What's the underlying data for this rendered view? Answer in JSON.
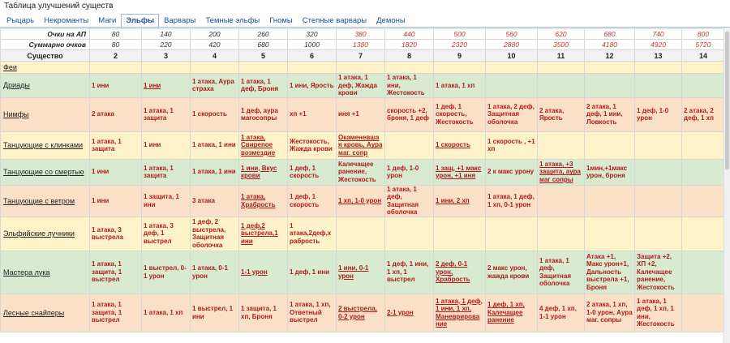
{
  "title": "Таблица улучшений существ",
  "tabs": [
    "Рыцарь",
    "Некроманты",
    "Маги",
    "Эльфы",
    "Варвары",
    "Темные эльфы",
    "Гномы",
    "Степные варвары",
    "Демоны"
  ],
  "active_tab": 3,
  "ap_label": "Очки на АП",
  "total_label": "Суммарно очков",
  "creature_label": "Существо",
  "ap": [
    "80",
    "140",
    "200",
    "260",
    "320",
    "380",
    "440",
    "500",
    "560",
    "620",
    "680",
    "740",
    "800"
  ],
  "totals": [
    "80",
    "220",
    "420",
    "680",
    "1000",
    "1380",
    "1820",
    "2320",
    "2880",
    "3500",
    "4180",
    "4920",
    "5720"
  ],
  "columns": [
    "2",
    "3",
    "4",
    "5",
    "6",
    "7",
    "8",
    "9",
    "10",
    "11",
    "12",
    "13",
    "14"
  ],
  "rows": [
    {
      "name": "Феи",
      "bg": "y",
      "cells": [
        "",
        "",
        "",
        "",
        "",
        "",
        "",
        "",
        "",
        "",
        "",
        "",
        ""
      ]
    },
    {
      "name": "Дриады",
      "bg": "g",
      "cells": [
        "1 ини",
        "1 ини",
        "1 атака, Аура страха",
        "1 атака, 1 деф, Броня",
        "1 ини, Ярость",
        "1 атака, 1 деф, Жажда крови",
        "1 атака, 1 ини, Жестокость",
        "1 атака, 1 хп",
        "",
        "",
        "",
        "",
        ""
      ]
    },
    {
      "name": "Нимфы",
      "bg": "o",
      "cells": [
        "2 атака",
        "1 атака, 1 защита",
        "1 скорость",
        "1 деф, аура магосопры",
        "хп +1",
        "иня +1",
        "скорость +2, броня, 1 деф",
        "1 деф, 1 скорость, Жестокость",
        "1 атака, 2 деф, Защитная оболочка",
        "2 атака, Ярость",
        "2 атака, 1 деф, 1 ини, Ловкость",
        "1 деф, 1-0 урон",
        "2 атака, 2 деф, 1 хп"
      ]
    },
    {
      "name": "Танцующие с клинками",
      "bg": "y",
      "cells": [
        "1 атака, 1 защита",
        "1 ини",
        "1 атака, 1 ини",
        "1 атака, Свирепое возмездие",
        "Жестокость, Жажда крови",
        "Окаменевшая кровь, Аура маг. сопр",
        "",
        "1 скорость",
        "1 скорость , +1 хп",
        "",
        "",
        "",
        ""
      ]
    },
    {
      "name": "Танцующие со смертью",
      "bg": "g",
      "cells": [
        "1 ини",
        "1 атака, 1 защита",
        "1 атака, 1 ини",
        "1 ини, Вкус крови",
        "1 деф, 1 скорость",
        "Калечащее ранение, Жестокость",
        "1 деф, 1-0 урон",
        "1 защ, +1 макс урон, +1 иня",
        "2 к макс урону",
        "1 атака, +3 защита, аура маг сопры",
        "1мин,+1макс урон, броня",
        "",
        ""
      ]
    },
    {
      "name": "Танцующие с ветром",
      "bg": "o",
      "cells": [
        "1 ини",
        "1 защита, 1 ини",
        "3 атака",
        "1 атака, Храбрость",
        "1 деф, 1 скорость",
        "1 хп, 1-0 урон",
        "1 атака, 1 деф, Защитная оболочка",
        "1 ини, 2 хп",
        "1 атака, 1 деф, 1 хп, 0-1 урон",
        "",
        "",
        "",
        ""
      ]
    },
    {
      "name": "Эльфийские лучники",
      "bg": "y",
      "cells": [
        "1 атака, 3 выстрела",
        "1 атака, 3 деф, 1 выстрел",
        "1 деф, 2 выстрела, Защитная оболочка",
        "1 деф,2 выстрела,1 ини",
        "1 атака,2деф,x рабрость",
        "",
        "",
        "",
        "",
        "",
        "",
        "",
        ""
      ]
    },
    {
      "name": "Мастера лука",
      "bg": "g",
      "cells": [
        "1 атака, 1 защита, 1 выстрел",
        "1 выстрел, 0-1 урон",
        "1 атака, 0-1 урон",
        "1-1 урон",
        "1 деф, 1 ини",
        "1 ини, 0-1 урон",
        "1 деф, 1 ини, 1 хп, 1 выстрел",
        "2 деф, 0-1 урон, Храбрость",
        "2 макс урон, жажда крови",
        "1 атака, 1 деф, Защитная оболочка",
        "Атака +1, Макс урон+1, Дальность выстрела +1, Броня",
        "Защита +2, ХП +2, Калечащее ранение, Жестокость",
        ""
      ]
    },
    {
      "name": "Лесные снайперы",
      "bg": "o",
      "cells": [
        "1 атака, 1 защита, 1 выстрел",
        "1 атака, 1 хп",
        "1 выстрел, 1 ини",
        "1 защита, 1 хп, Броня",
        "1 атака, 1 хп, Ответный выстрел",
        "2 выстрела, 0-2 урон",
        "2-1 урон",
        "1 атака, 1 деф, 1 ини, 1 хп, Маневрирование",
        "1 деф, 1 хп, Калечащее ранение",
        "4 деф, 1 хп, 1-1 урон",
        "2 атака, 1 хп, 1-0 урон, Аура маг. сопры",
        "1 атака, 1 деф, 1 хп, 1 ини, Жестокость",
        ""
      ]
    }
  ],
  "underlined": {
    "1": [
      1
    ],
    "3": [
      3,
      5,
      7
    ],
    "4": [
      3,
      7,
      9
    ],
    "5": [
      3,
      5,
      7
    ],
    "6": [
      3
    ],
    "7": [
      3,
      5,
      7
    ],
    "8": [
      5,
      6,
      7,
      8
    ]
  }
}
